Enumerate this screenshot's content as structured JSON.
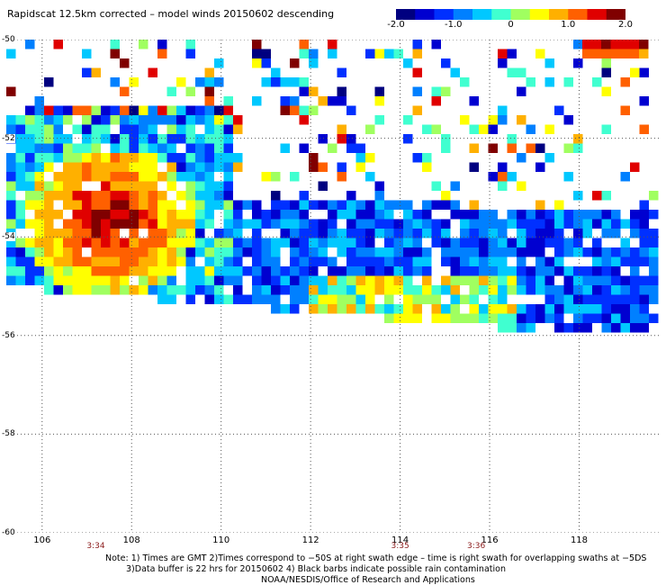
{
  "title": "Rapidscat 12.5km corrected – model winds 20150602 descending",
  "colorbar": {
    "ticks": [
      {
        "label": "-2.0",
        "value": -2.0
      },
      {
        "label": "-1.0",
        "value": -1.0
      },
      {
        "label": "0",
        "value": 0
      },
      {
        "label": "1.0",
        "value": 1.0
      },
      {
        "label": "2.0",
        "value": 2.0
      }
    ],
    "colors": [
      "#000080",
      "#0000d0",
      "#0030ff",
      "#0080ff",
      "#00c8ff",
      "#40ffd0",
      "#a0ff60",
      "#ffff00",
      "#ffb000",
      "#ff6000",
      "#e00000",
      "#800000"
    ]
  },
  "map": {
    "lat_range": [
      -60,
      -50
    ],
    "lon_range": [
      105.2,
      119.8
    ],
    "lat_ticks": [
      {
        "label": "-50",
        "value": -50
      },
      {
        "label": "-52",
        "value": -52
      },
      {
        "label": "-54",
        "value": -54
      },
      {
        "label": "-56",
        "value": -56
      },
      {
        "label": "-58",
        "value": -58
      },
      {
        "label": "-60",
        "value": -60
      }
    ],
    "lon_ticks": [
      {
        "label": "106",
        "value": 106
      },
      {
        "label": "108",
        "value": 108
      },
      {
        "label": "110",
        "value": 110
      },
      {
        "label": "112",
        "value": 112
      },
      {
        "label": "114",
        "value": 114
      },
      {
        "label": "116",
        "value": 116
      },
      {
        "label": "118",
        "value": 118
      }
    ],
    "swath_times": [
      {
        "label": "3:34",
        "lon": 107.2
      },
      {
        "label": "3:35",
        "lon": 114.0
      },
      {
        "label": "3:36",
        "lon": 115.7
      }
    ]
  },
  "notes": {
    "line1": "Note: 1) Times are GMT 2)Times correspond to −50S at right swath edge – time is right swath for overlapping swaths at −5DS",
    "line2": "3)Data buffer is 22 hrs for 20150602 4) Black barbs indicate possible rain contamination",
    "line3": "NOAA/NESDIS/Office of Research and Applications"
  }
}
